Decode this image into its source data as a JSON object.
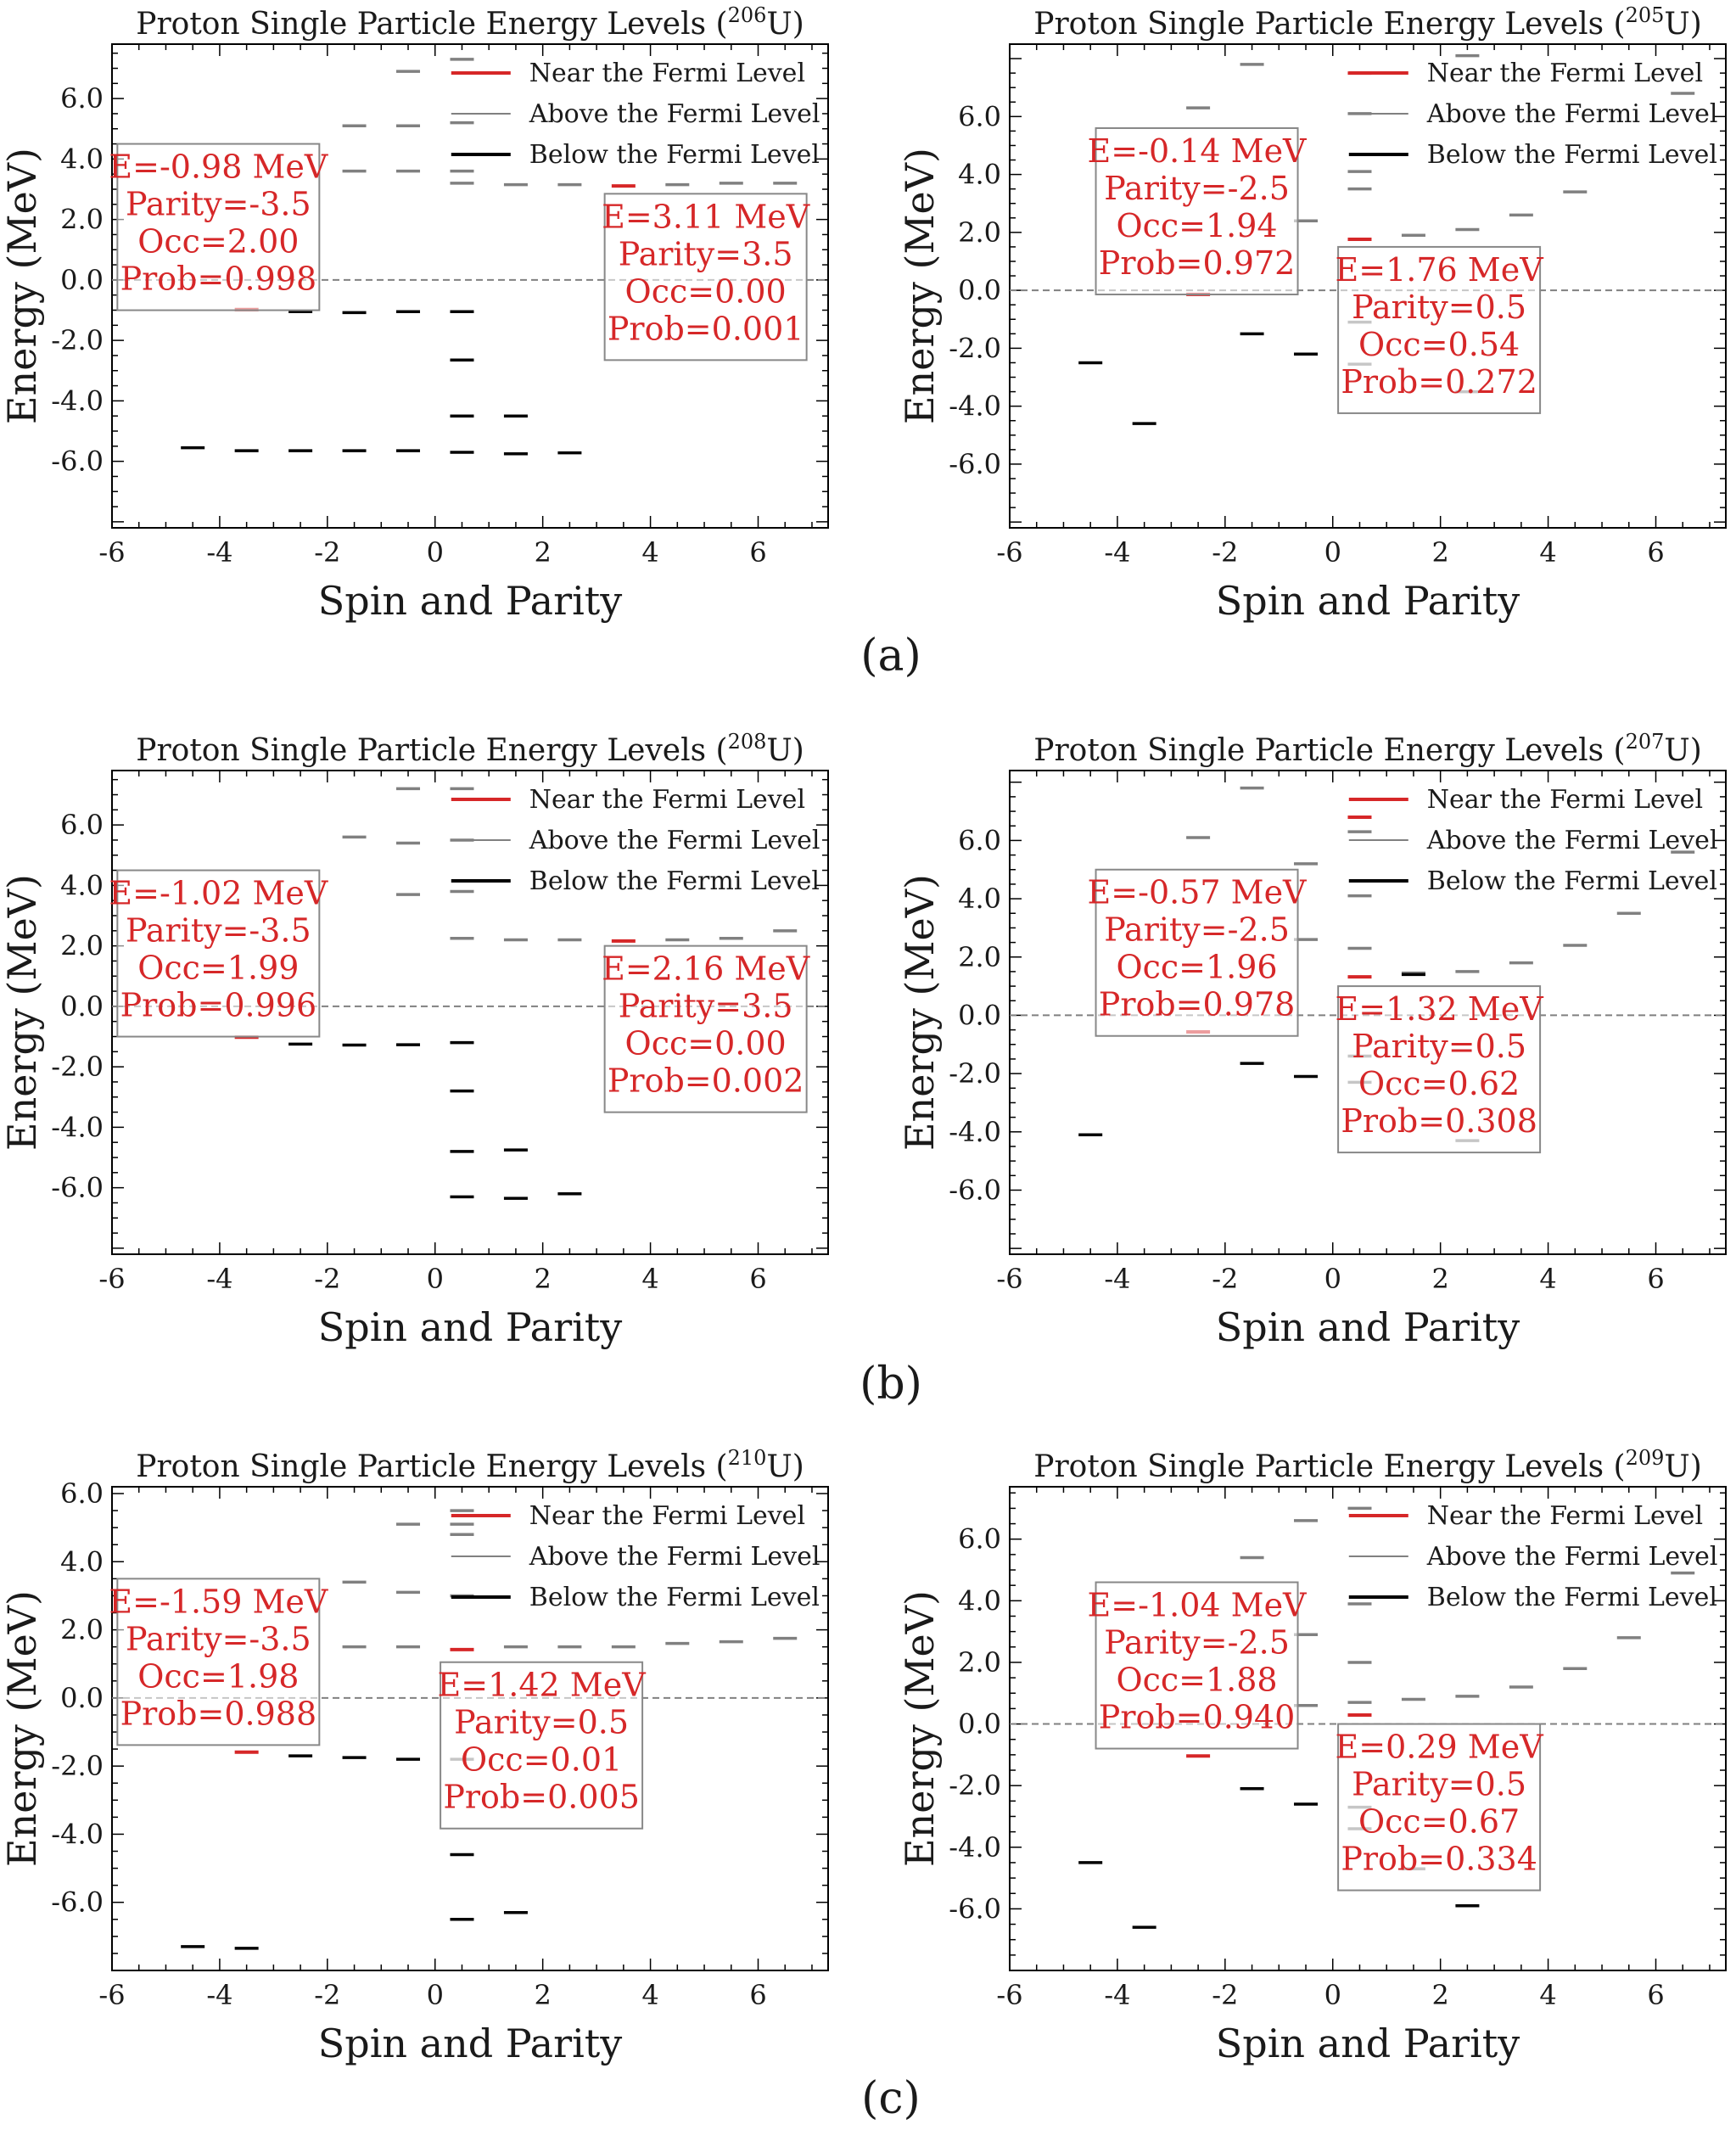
{
  "figure": {
    "legend": {
      "near": "Near the Fermi Level",
      "above": "Above the Fermi Level",
      "below": "Below the Fermi Level"
    },
    "colors": {
      "near": "#d62728",
      "above": "#808080",
      "below": "#000000",
      "text": "#d62728",
      "fermi": "#808080"
    }
  },
  "chart_data": [
    {
      "type": "scatter",
      "caption": "(a)",
      "title": "Proton Single Particle Energy Levels (206U)",
      "title_main": "Proton Single Particle Energy Levels (",
      "isotope_mass": "206",
      "isotope_symbol": "U",
      "title_close": ")",
      "xlabel": "Spin and Parity",
      "ylabel": "Energy (MeV)",
      "xlim": [
        -6,
        7.3
      ],
      "ylim": [
        -8.2,
        7.8
      ],
      "xticks": [
        -6,
        -4,
        -2,
        0,
        2,
        4,
        6
      ],
      "yticks": [
        -6,
        -4,
        -2,
        0,
        2,
        4,
        6
      ],
      "fermi_level": 0,
      "legend_position": "top-right",
      "series": [
        {
          "name": "Near the Fermi Level",
          "points": [
            [
              -3.5,
              -0.98
            ],
            [
              3.5,
              3.11
            ]
          ]
        },
        {
          "name": "Above the Fermi Level",
          "points": [
            [
              -0.5,
              6.9
            ],
            [
              0.5,
              7.3
            ],
            [
              -1.5,
              5.1
            ],
            [
              -0.5,
              5.1
            ],
            [
              0.5,
              5.2
            ],
            [
              -1.5,
              3.6
            ],
            [
              -0.5,
              3.6
            ],
            [
              0.5,
              3.6
            ],
            [
              0.5,
              3.2
            ],
            [
              1.5,
              3.15
            ],
            [
              2.5,
              3.15
            ],
            [
              4.5,
              3.15
            ],
            [
              5.5,
              3.2
            ],
            [
              6.5,
              3.2
            ]
          ]
        },
        {
          "name": "Below the Fermi Level",
          "points": [
            [
              -2.5,
              -1.05
            ],
            [
              -1.5,
              -1.08
            ],
            [
              -0.5,
              -1.05
            ],
            [
              0.5,
              -1.05
            ],
            [
              0.5,
              -2.65
            ],
            [
              0.5,
              -4.5
            ],
            [
              1.5,
              -4.5
            ],
            [
              -4.5,
              -5.55
            ],
            [
              -3.5,
              -5.65
            ],
            [
              -2.5,
              -5.65
            ],
            [
              -1.5,
              -5.65
            ],
            [
              -0.5,
              -5.65
            ],
            [
              0.5,
              -5.7
            ],
            [
              1.5,
              -5.75
            ],
            [
              2.5,
              -5.72
            ]
          ]
        }
      ],
      "annotations": [
        {
          "lines": [
            "E=-0.98 MeV",
            "Parity=-3.5",
            "Occ=2.00",
            "Prob=0.998"
          ],
          "anchor": [
            -5.9,
            4.5
          ]
        },
        {
          "lines": [
            "E=3.11 MeV",
            "Parity=3.5",
            "Occ=0.00",
            "Prob=0.001"
          ],
          "anchor": [
            3.15,
            2.85
          ]
        }
      ]
    },
    {
      "type": "scatter",
      "caption": "",
      "title": "Proton Single Particle Energy Levels (205U)",
      "title_main": "Proton Single Particle Energy Levels (",
      "isotope_mass": "205",
      "isotope_symbol": "U",
      "title_close": ")",
      "xlabel": "Spin and Parity",
      "ylabel": "Energy (MeV)",
      "xlim": [
        -6,
        7.3
      ],
      "ylim": [
        -8.2,
        8.5
      ],
      "xticks": [
        -6,
        -4,
        -2,
        0,
        2,
        4,
        6
      ],
      "yticks": [
        -6,
        -4,
        -2,
        0,
        2,
        4,
        6
      ],
      "fermi_level": 0,
      "legend_position": "top-right",
      "series": [
        {
          "name": "Near the Fermi Level",
          "points": [
            [
              -2.5,
              -0.14
            ],
            [
              0.5,
              1.76
            ],
            [
              0.5,
              7.5
            ]
          ]
        },
        {
          "name": "Above the Fermi Level",
          "points": [
            [
              -1.5,
              7.8
            ],
            [
              2.5,
              8.1
            ],
            [
              -2.5,
              6.3
            ],
            [
              0.5,
              6.1
            ],
            [
              6.5,
              6.8
            ],
            [
              0.5,
              4.1
            ],
            [
              0.5,
              3.5
            ],
            [
              -0.5,
              2.4
            ],
            [
              1.5,
              1.9
            ],
            [
              2.5,
              2.1
            ],
            [
              3.5,
              2.6
            ],
            [
              4.5,
              3.4
            ],
            [
              0.5,
              -1.1
            ],
            [
              0.5,
              -2.55
            ],
            [
              2.5,
              -3.5
            ]
          ]
        },
        {
          "name": "Below the Fermi Level",
          "points": [
            [
              -4.5,
              -2.5
            ],
            [
              -3.5,
              -4.6
            ],
            [
              -1.5,
              -1.5
            ],
            [
              -0.5,
              -2.2
            ]
          ]
        }
      ],
      "annotations": [
        {
          "lines": [
            "E=-0.14 MeV",
            "Parity=-2.5",
            "Occ=1.94",
            "Prob=0.972"
          ],
          "anchor": [
            -4.4,
            5.6
          ]
        },
        {
          "lines": [
            "E=1.76 MeV",
            "Parity=0.5",
            "Occ=0.54",
            "Prob=0.272"
          ],
          "anchor": [
            0.1,
            1.5
          ]
        }
      ]
    },
    {
      "type": "scatter",
      "caption": "(b)",
      "title": "Proton Single Particle Energy Levels (208U)",
      "title_main": "Proton Single Particle Energy Levels (",
      "isotope_mass": "208",
      "isotope_symbol": "U",
      "title_close": ")",
      "xlabel": "Spin and Parity",
      "ylabel": "Energy (MeV)",
      "xlim": [
        -6,
        7.3
      ],
      "ylim": [
        -8.2,
        7.8
      ],
      "xticks": [
        -6,
        -4,
        -2,
        0,
        2,
        4,
        6
      ],
      "yticks": [
        -6,
        -4,
        -2,
        0,
        2,
        4,
        6
      ],
      "fermi_level": 0,
      "legend_position": "top-right",
      "series": [
        {
          "name": "Near the Fermi Level",
          "points": [
            [
              -3.5,
              -1.02
            ],
            [
              3.5,
              2.16
            ]
          ]
        },
        {
          "name": "Above the Fermi Level",
          "points": [
            [
              -0.5,
              7.2
            ],
            [
              0.5,
              7.2
            ],
            [
              -1.5,
              5.6
            ],
            [
              -0.5,
              5.4
            ],
            [
              0.5,
              5.5
            ],
            [
              -0.5,
              3.7
            ],
            [
              0.5,
              3.8
            ],
            [
              0.5,
              2.25
            ],
            [
              1.5,
              2.2
            ],
            [
              2.5,
              2.2
            ],
            [
              4.5,
              2.2
            ],
            [
              5.5,
              2.25
            ],
            [
              6.5,
              2.5
            ]
          ]
        },
        {
          "name": "Below the Fermi Level",
          "points": [
            [
              -2.5,
              -1.25
            ],
            [
              -1.5,
              -1.28
            ],
            [
              -0.5,
              -1.27
            ],
            [
              0.5,
              -1.2
            ],
            [
              0.5,
              -2.8
            ],
            [
              0.5,
              -4.8
            ],
            [
              1.5,
              -4.75
            ],
            [
              0.5,
              -6.3
            ],
            [
              1.5,
              -6.35
            ],
            [
              2.5,
              -6.2
            ]
          ]
        }
      ],
      "annotations": [
        {
          "lines": [
            "E=-1.02 MeV",
            "Parity=-3.5",
            "Occ=1.99",
            "Prob=0.996"
          ],
          "anchor": [
            -5.9,
            4.5
          ]
        },
        {
          "lines": [
            "E=2.16 MeV",
            "Parity=3.5",
            "Occ=0.00",
            "Prob=0.002"
          ],
          "anchor": [
            3.15,
            2.0
          ]
        }
      ]
    },
    {
      "type": "scatter",
      "caption": "",
      "title": "Proton Single Particle Energy Levels (207U)",
      "title_main": "Proton Single Particle Energy Levels (",
      "isotope_mass": "207",
      "isotope_symbol": "U",
      "title_close": ")",
      "xlabel": "Spin and Parity",
      "ylabel": "Energy (MeV)",
      "xlim": [
        -6,
        7.3
      ],
      "ylim": [
        -8.2,
        8.4
      ],
      "xticks": [
        -6,
        -4,
        -2,
        0,
        2,
        4,
        6
      ],
      "yticks": [
        -6,
        -4,
        -2,
        0,
        2,
        4,
        6
      ],
      "fermi_level": 0,
      "legend_position": "top-right",
      "series": [
        {
          "name": "Near the Fermi Level",
          "points": [
            [
              -2.5,
              -0.57
            ],
            [
              0.5,
              1.32
            ],
            [
              0.5,
              6.8
            ]
          ]
        },
        {
          "name": "Above the Fermi Level",
          "points": [
            [
              -1.5,
              7.8
            ],
            [
              -2.5,
              6.1
            ],
            [
              0.5,
              6.3
            ],
            [
              6.5,
              5.6
            ],
            [
              -0.5,
              5.2
            ],
            [
              0.5,
              4.1
            ],
            [
              0.5,
              2.3
            ],
            [
              -0.5,
              2.6
            ],
            [
              1.5,
              1.45
            ],
            [
              2.5,
              1.5
            ],
            [
              3.5,
              1.8
            ],
            [
              4.5,
              2.4
            ],
            [
              5.5,
              3.5
            ],
            [
              0.5,
              -1.4
            ],
            [
              0.5,
              -2.3
            ],
            [
              2.5,
              -4.3
            ]
          ]
        },
        {
          "name": "Below the Fermi Level",
          "points": [
            [
              -4.5,
              -4.1
            ],
            [
              -1.5,
              -1.65
            ],
            [
              -0.5,
              -2.1
            ],
            [
              1.5,
              1.4
            ]
          ]
        }
      ],
      "annotations": [
        {
          "lines": [
            "E=-0.57 MeV",
            "Parity=-2.5",
            "Occ=1.96",
            "Prob=0.978"
          ],
          "anchor": [
            -4.4,
            5.0
          ]
        },
        {
          "lines": [
            "E=1.32 MeV",
            "Parity=0.5",
            "Occ=0.62",
            "Prob=0.308"
          ],
          "anchor": [
            0.1,
            1.0
          ]
        }
      ]
    },
    {
      "type": "scatter",
      "caption": "(c)",
      "title": "Proton Single Particle Energy Levels (210U)",
      "title_main": "Proton Single Particle Energy Levels (",
      "isotope_mass": "210",
      "isotope_symbol": "U",
      "title_close": ")",
      "xlabel": "Spin and Parity",
      "ylabel": "Energy (MeV)",
      "xlim": [
        -6,
        7.3
      ],
      "ylim": [
        -8.0,
        6.2
      ],
      "xticks": [
        -6,
        -4,
        -2,
        0,
        2,
        4,
        6
      ],
      "yticks": [
        -6,
        -4,
        -2,
        0,
        2,
        4,
        6
      ],
      "fermi_level": 0,
      "legend_position": "top-right",
      "series": [
        {
          "name": "Near the Fermi Level",
          "points": [
            [
              -3.5,
              -1.59
            ],
            [
              0.5,
              1.42
            ]
          ]
        },
        {
          "name": "Above the Fermi Level",
          "points": [
            [
              0.5,
              5.5
            ],
            [
              -0.5,
              5.1
            ],
            [
              0.5,
              5.1
            ],
            [
              0.5,
              4.8
            ],
            [
              -1.5,
              3.4
            ],
            [
              -0.5,
              3.1
            ],
            [
              0.5,
              3.0
            ],
            [
              -1.5,
              1.5
            ],
            [
              -0.5,
              1.5
            ],
            [
              1.5,
              1.5
            ],
            [
              2.5,
              1.5
            ],
            [
              3.5,
              1.5
            ],
            [
              4.5,
              1.6
            ],
            [
              5.5,
              1.65
            ],
            [
              6.5,
              1.75
            ],
            [
              0.5,
              -1.8
            ]
          ]
        },
        {
          "name": "Below the Fermi Level",
          "points": [
            [
              -2.5,
              -1.7
            ],
            [
              -1.5,
              -1.75
            ],
            [
              -0.5,
              -1.8
            ],
            [
              0.5,
              -4.6
            ],
            [
              0.5,
              -6.5
            ],
            [
              1.5,
              -6.3
            ],
            [
              -4.5,
              -7.3
            ],
            [
              -3.5,
              -7.35
            ]
          ]
        }
      ],
      "annotations": [
        {
          "lines": [
            "E=-1.59 MeV",
            "Parity=-3.5",
            "Occ=1.98",
            "Prob=0.988"
          ],
          "anchor": [
            -5.9,
            3.5
          ]
        },
        {
          "lines": [
            "E=1.42 MeV",
            "Parity=0.5",
            "Occ=0.01",
            "Prob=0.005"
          ],
          "anchor": [
            0.1,
            1.05
          ]
        }
      ]
    },
    {
      "type": "scatter",
      "caption": "",
      "title": "Proton Single Particle Energy Levels (209U)",
      "title_main": "Proton Single Particle Energy Levels (",
      "isotope_mass": "209",
      "isotope_symbol": "U",
      "title_close": ")",
      "xlabel": "Spin and Parity",
      "ylabel": "Energy (MeV)",
      "xlim": [
        -6,
        7.3
      ],
      "ylim": [
        -8.0,
        7.7
      ],
      "xticks": [
        -6,
        -4,
        -2,
        0,
        2,
        4,
        6
      ],
      "yticks": [
        -6,
        -4,
        -2,
        0,
        2,
        4,
        6
      ],
      "fermi_level": 0,
      "legend_position": "top-right",
      "series": [
        {
          "name": "Near the Fermi Level",
          "points": [
            [
              -2.5,
              -1.04
            ],
            [
              0.5,
              0.29
            ]
          ]
        },
        {
          "name": "Above the Fermi Level",
          "points": [
            [
              0.5,
              7.0
            ],
            [
              -0.5,
              6.6
            ],
            [
              -1.5,
              5.4
            ],
            [
              6.5,
              4.9
            ],
            [
              0.5,
              3.9
            ],
            [
              -0.5,
              2.9
            ],
            [
              0.5,
              2.0
            ],
            [
              0.5,
              0.7
            ],
            [
              -0.5,
              0.6
            ],
            [
              1.5,
              0.8
            ],
            [
              2.5,
              0.9
            ],
            [
              3.5,
              1.2
            ],
            [
              4.5,
              1.8
            ],
            [
              5.5,
              2.8
            ],
            [
              0.5,
              -2.7
            ],
            [
              0.5,
              -3.4
            ],
            [
              1.5,
              -4.7
            ]
          ]
        },
        {
          "name": "Below the Fermi Level",
          "points": [
            [
              -4.5,
              -4.5
            ],
            [
              -3.5,
              -6.6
            ],
            [
              -1.5,
              -2.1
            ],
            [
              -0.5,
              -2.6
            ],
            [
              2.5,
              -5.9
            ]
          ]
        }
      ],
      "annotations": [
        {
          "lines": [
            "E=-1.04 MeV",
            "Parity=-2.5",
            "Occ=1.88",
            "Prob=0.940"
          ],
          "anchor": [
            -4.4,
            4.6
          ]
        },
        {
          "lines": [
            "E=0.29 MeV",
            "Parity=0.5",
            "Occ=0.67",
            "Prob=0.334"
          ],
          "anchor": [
            0.1,
            0.0
          ]
        }
      ]
    }
  ]
}
